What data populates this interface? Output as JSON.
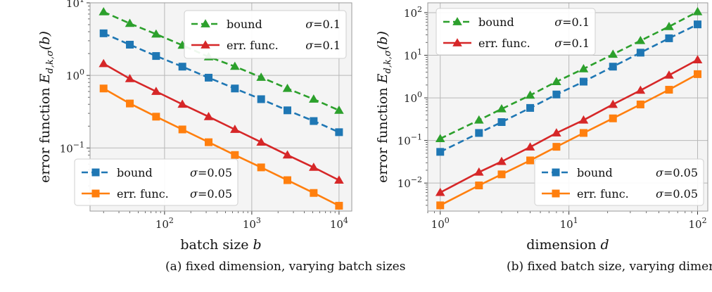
{
  "chart_data": [
    {
      "type": "line",
      "scale": "log-log",
      "caption": "(a) fixed dimension, varying batch sizes",
      "xlabel": "batch size b",
      "ylabel": "error function E_{d,k,σ}(b)",
      "xlim": [
        14,
        14000
      ],
      "ylim": [
        0.0135,
        10
      ],
      "grid": true,
      "x_ticks": [
        {
          "value": 100,
          "base": "10",
          "exp": "2"
        },
        {
          "value": 1000,
          "base": "10",
          "exp": "3"
        },
        {
          "value": 10000,
          "base": "10",
          "exp": "4"
        }
      ],
      "y_ticks": [
        {
          "value": 10,
          "base": "10",
          "exp": "1"
        },
        {
          "value": 1,
          "base": "10",
          "exp": "0"
        },
        {
          "value": 0.1,
          "base": "10",
          "exp": "−1"
        }
      ],
      "series": [
        {
          "name": "bound σ=0.1",
          "color": "#2ca02c",
          "marker": "triangle",
          "dashed": true,
          "x": [
            20,
            40,
            80,
            160,
            320,
            640,
            1280,
            2560,
            5120,
            10000
          ],
          "values": [
            7.5,
            5.2,
            3.7,
            2.6,
            1.8,
            1.33,
            0.94,
            0.66,
            0.47,
            0.33
          ]
        },
        {
          "name": "err. func. σ=0.1",
          "color": "#d62728",
          "marker": "triangle",
          "dashed": false,
          "x": [
            20,
            40,
            80,
            160,
            320,
            640,
            1280,
            2560,
            5120,
            10000
          ],
          "values": [
            1.45,
            0.9,
            0.6,
            0.4,
            0.27,
            0.18,
            0.12,
            0.08,
            0.054,
            0.036
          ]
        },
        {
          "name": "bound σ=0.05",
          "color": "#1f77b4",
          "marker": "square",
          "dashed": true,
          "x": [
            20,
            40,
            80,
            160,
            320,
            640,
            1280,
            2560,
            5120,
            10000
          ],
          "values": [
            3.8,
            2.65,
            1.85,
            1.32,
            0.93,
            0.66,
            0.47,
            0.33,
            0.235,
            0.165
          ]
        },
        {
          "name": "err. func. σ=0.05",
          "color": "#ff7f0e",
          "marker": "square",
          "dashed": false,
          "x": [
            20,
            40,
            80,
            160,
            320,
            640,
            1280,
            2560,
            5120,
            10000
          ],
          "values": [
            0.66,
            0.41,
            0.27,
            0.18,
            0.12,
            0.08,
            0.054,
            0.036,
            0.024,
            0.016
          ]
        }
      ],
      "legends": [
        {
          "placement": "top-right",
          "entries": [
            {
              "series": 0,
              "label": "bound",
              "sigma": "σ=0.1"
            },
            {
              "series": 1,
              "label": "err. func.",
              "sigma": "σ=0.1"
            }
          ]
        },
        {
          "placement": "bottom-left",
          "entries": [
            {
              "series": 2,
              "label": "bound",
              "sigma": "σ=0.05"
            },
            {
              "series": 3,
              "label": "err. func.",
              "sigma": "σ=0.05"
            }
          ]
        }
      ]
    },
    {
      "type": "line",
      "scale": "log-log",
      "caption": "(b) fixed batch size, varying dimensions",
      "xlabel": "dimension d",
      "ylabel": "error function E_{d,k,σ}(b)",
      "xlim": [
        0.8,
        120
      ],
      "ylim": [
        0.0022,
        170
      ],
      "grid": true,
      "x_ticks": [
        {
          "value": 1,
          "base": "10",
          "exp": "0"
        },
        {
          "value": 10,
          "base": "10",
          "exp": "1"
        },
        {
          "value": 100,
          "base": "10",
          "exp": "2"
        }
      ],
      "y_ticks": [
        {
          "value": 100,
          "base": "10",
          "exp": "2"
        },
        {
          "value": 10,
          "base": "10",
          "exp": "1"
        },
        {
          "value": 1,
          "base": "10",
          "exp": "0"
        },
        {
          "value": 0.1,
          "base": "10",
          "exp": "−1"
        },
        {
          "value": 0.01,
          "base": "10",
          "exp": "−2"
        }
      ],
      "series": [
        {
          "name": "bound σ=0.1",
          "color": "#2ca02c",
          "marker": "triangle",
          "dashed": true,
          "x": [
            1,
            2,
            3,
            5,
            8,
            13,
            22,
            36,
            60,
            100
          ],
          "values": [
            0.11,
            0.3,
            0.55,
            1.15,
            2.4,
            4.8,
            10.5,
            22,
            47,
            105
          ]
        },
        {
          "name": "err. func. σ=0.1",
          "color": "#d62728",
          "marker": "triangle",
          "dashed": false,
          "x": [
            1,
            2,
            3,
            5,
            8,
            13,
            22,
            36,
            60,
            100
          ],
          "values": [
            0.006,
            0.018,
            0.032,
            0.07,
            0.15,
            0.3,
            0.7,
            1.5,
            3.4,
            7.8
          ]
        },
        {
          "name": "bound σ=0.05",
          "color": "#1f77b4",
          "marker": "square",
          "dashed": true,
          "x": [
            1,
            2,
            3,
            5,
            8,
            13,
            22,
            36,
            60,
            100
          ],
          "values": [
            0.054,
            0.15,
            0.27,
            0.58,
            1.2,
            2.4,
            5.4,
            11.5,
            25,
            53
          ]
        },
        {
          "name": "err. func. σ=0.05",
          "color": "#ff7f0e",
          "marker": "square",
          "dashed": false,
          "x": [
            1,
            2,
            3,
            5,
            8,
            13,
            22,
            36,
            60,
            100
          ],
          "values": [
            0.003,
            0.0088,
            0.016,
            0.034,
            0.071,
            0.15,
            0.33,
            0.7,
            1.55,
            3.6
          ]
        }
      ],
      "legends": [
        {
          "placement": "top-left",
          "entries": [
            {
              "series": 0,
              "label": "bound",
              "sigma": "σ=0.1"
            },
            {
              "series": 1,
              "label": "err. func.",
              "sigma": "σ=0.1"
            }
          ]
        },
        {
          "placement": "bottom-right",
          "entries": [
            {
              "series": 2,
              "label": "bound",
              "sigma": "σ=0.05"
            },
            {
              "series": 3,
              "label": "err. func.",
              "sigma": "σ=0.05"
            }
          ]
        }
      ]
    }
  ]
}
